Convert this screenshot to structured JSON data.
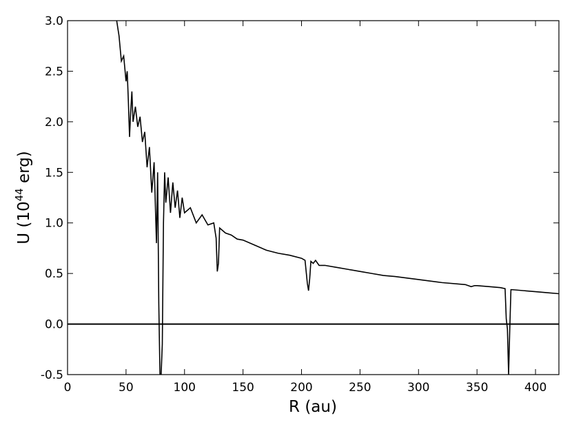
{
  "chart_data": {
    "type": "line",
    "xlabel": "R (au)",
    "ylabel": {
      "base": "U (10",
      "exponent": "44",
      "unit": " erg)"
    },
    "x": [
      42,
      44,
      46,
      48,
      50,
      51,
      52,
      53,
      54,
      55,
      56,
      58,
      60,
      62,
      64,
      66,
      68,
      70,
      72,
      74,
      76,
      77,
      78,
      79,
      80,
      81,
      82,
      83,
      84,
      86,
      88,
      90,
      92,
      94,
      96,
      98,
      100,
      105,
      110,
      115,
      120,
      125,
      127,
      128,
      129,
      130,
      132,
      135,
      140,
      145,
      150,
      160,
      170,
      180,
      190,
      200,
      203,
      205,
      206,
      207,
      208,
      210,
      212,
      215,
      220,
      230,
      240,
      250,
      260,
      270,
      280,
      300,
      320,
      340,
      345,
      348,
      350,
      360,
      370,
      374,
      375,
      376,
      377,
      378,
      379,
      380,
      390,
      400,
      410,
      420
    ],
    "series": [
      {
        "color": "#000000",
        "values": [
          3.0,
          2.85,
          2.6,
          2.65,
          2.4,
          2.5,
          2.2,
          1.85,
          2.1,
          2.3,
          2.0,
          2.15,
          1.95,
          2.05,
          1.8,
          1.9,
          1.55,
          1.75,
          1.3,
          1.6,
          0.8,
          1.5,
          0.2,
          -0.5,
          -0.5,
          -0.2,
          1.0,
          1.5,
          1.2,
          1.45,
          1.1,
          1.4,
          1.15,
          1.32,
          1.05,
          1.25,
          1.1,
          1.15,
          1.0,
          1.08,
          0.98,
          1.0,
          0.85,
          0.52,
          0.6,
          0.95,
          0.93,
          0.9,
          0.88,
          0.84,
          0.83,
          0.78,
          0.73,
          0.7,
          0.68,
          0.65,
          0.63,
          0.4,
          0.33,
          0.45,
          0.62,
          0.6,
          0.63,
          0.58,
          0.58,
          0.56,
          0.54,
          0.52,
          0.5,
          0.48,
          0.47,
          0.44,
          0.41,
          0.39,
          0.37,
          0.38,
          0.38,
          0.37,
          0.36,
          0.35,
          0.05,
          -0.05,
          -0.5,
          -0.05,
          0.34,
          0.34,
          0.33,
          0.32,
          0.31,
          0.3
        ]
      }
    ],
    "hline": 0,
    "xlim": [
      0,
      420
    ],
    "ylim": [
      -0.5,
      3.0
    ],
    "xticks": [
      0,
      50,
      100,
      150,
      200,
      250,
      300,
      350,
      400
    ],
    "yticks": [
      {
        "value": -0.5,
        "label": "-0.5"
      },
      {
        "value": 0,
        "label": "0.0"
      },
      0.5,
      {
        "value": 1,
        "label": "1.0"
      },
      1.5,
      {
        "value": 2,
        "label": "2.0"
      },
      2.5,
      {
        "value": 3,
        "label": "3.0"
      }
    ]
  }
}
